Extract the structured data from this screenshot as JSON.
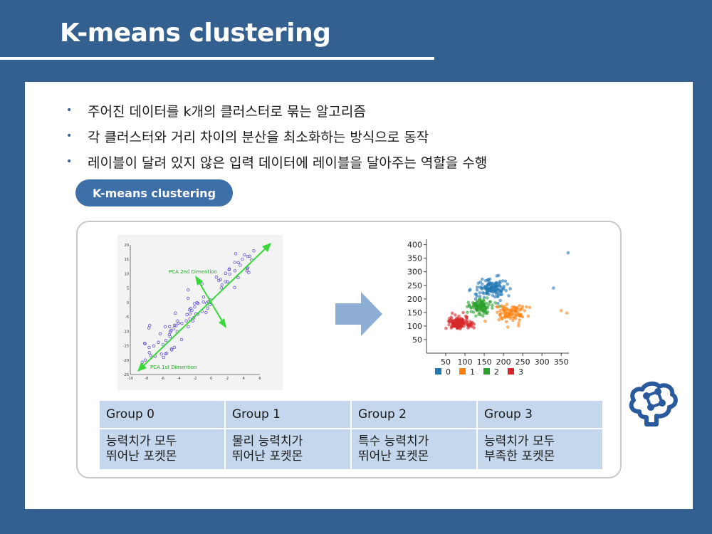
{
  "slide": {
    "title": "K-means clustering"
  },
  "bullets": [
    "주어진 데이터를 k개의 클러스터로 묶는 알고리즘",
    "각 클러스터와 거리 차이의 분산을 최소화하는 방식으로 동작",
    "레이블이 달려 있지 않은 입력 데이터에 레이블을 달아주는 역할을 수행"
  ],
  "bullet_marker": "•",
  "pill_label": "K-means clustering",
  "pca_figure": {
    "label_2nd": "PCA 2nd Dimention",
    "label_1st": "PCA 1st Dimention",
    "y_ticks": [
      "20",
      "15",
      "10",
      "5",
      "0",
      "-5",
      "-10",
      "-15",
      "-20",
      "-25"
    ],
    "x_ticks": [
      "-10",
      "-8",
      "-6",
      "-4",
      "-2",
      "0",
      "2",
      "4",
      "6"
    ]
  },
  "chart_data": {
    "type": "scatter",
    "x_ticks": [
      "50",
      "100",
      "150",
      "200",
      "250",
      "300",
      "350"
    ],
    "y_ticks": [
      "400",
      "350",
      "300",
      "250",
      "200",
      "150",
      "100",
      "50"
    ],
    "xlim": [
      0,
      370
    ],
    "ylim": [
      0,
      420
    ],
    "legend_position": "bottom",
    "series": [
      {
        "name": "0",
        "color": "#1f77b4",
        "center": [
          170,
          235
        ],
        "spread": [
          38,
          35
        ],
        "count": 120
      },
      {
        "name": "1",
        "color": "#ff7f0e",
        "center": [
          215,
          148
        ],
        "spread": [
          35,
          28
        ],
        "count": 90
      },
      {
        "name": "2",
        "color": "#2ca02c",
        "center": [
          140,
          172
        ],
        "spread": [
          25,
          25
        ],
        "count": 100
      },
      {
        "name": "3",
        "color": "#d62728",
        "center": [
          88,
          108
        ],
        "spread": [
          28,
          22
        ],
        "count": 120
      }
    ],
    "outliers": [
      {
        "series": "0",
        "x": 368,
        "y": 370
      },
      {
        "series": "1",
        "x": 350,
        "y": 157
      },
      {
        "series": "1",
        "x": 365,
        "y": 148
      },
      {
        "series": "0",
        "x": 330,
        "y": 240
      }
    ]
  },
  "groups": [
    {
      "header": "Group 0",
      "desc": "능력치가 모두\n뛰어난 포켓몬"
    },
    {
      "header": "Group 1",
      "desc": "물리 능력치가\n뛰어난 포켓몬"
    },
    {
      "header": "Group 2",
      "desc": "특수 능력치가\n뛰어난 포켓몬"
    },
    {
      "header": "Group 3",
      "desc": "능력치가 모두\n부족한 포켓몬"
    }
  ],
  "colors": {
    "background": "#34608f",
    "pill": "#3d6fa8",
    "table_cell": "#c5d7ed",
    "arrow": "#8eaed6",
    "pca_points": "#4f3fd0",
    "pca_axes": "#39d839"
  }
}
